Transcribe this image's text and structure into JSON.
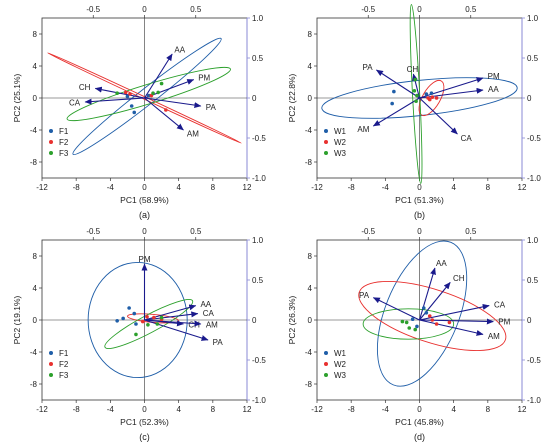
{
  "colors": {
    "group1": "#1f5ea8",
    "group2": "#e8312f",
    "group3": "#2ca02c",
    "loading_arrow": "#1a1a8c",
    "axis": "#333333",
    "right_axis": "#8a8ad6"
  },
  "chart_data": [
    {
      "type": "scatter",
      "panel_label": "(a)",
      "xlabel": "PC1 (58.9%)",
      "ylabel": "PC2 (25.1%)",
      "xlim": [
        -12,
        12
      ],
      "ylim": [
        -10,
        10
      ],
      "xticks": [
        "-12",
        "-8",
        "-4",
        "0",
        "4",
        "8",
        "12"
      ],
      "yticks": [
        "-8",
        "-4",
        "0",
        "4",
        "8"
      ],
      "top_ticks": [
        "-0.5",
        "0",
        "0.5"
      ],
      "right_ticks": [
        "1.0",
        "0.5",
        "0",
        "-0.5",
        "-1.0"
      ],
      "legend": [
        "F1",
        "F2",
        "F3"
      ],
      "loadings": [
        {
          "label": "AA",
          "x": 0.27,
          "y": 0.55
        },
        {
          "label": "PM",
          "x": 0.48,
          "y": 0.23
        },
        {
          "label": "PA",
          "x": 0.55,
          "y": -0.1
        },
        {
          "label": "AM",
          "x": 0.38,
          "y": -0.4
        },
        {
          "label": "CH",
          "x": -0.48,
          "y": 0.12
        },
        {
          "label": "CA",
          "x": -0.58,
          "y": -0.05
        }
      ],
      "series": [
        {
          "name": "F1",
          "points": [
            [
              -1.5,
              -1.0
            ],
            [
              -1.2,
              -1.8
            ],
            [
              -2.0,
              0.2
            ],
            [
              0.5,
              0.3
            ]
          ],
          "ellipse": {
            "cx": 0.3,
            "cy": 0.2,
            "rx": 11.0,
            "ry": 1.0,
            "angle": 38
          }
        },
        {
          "name": "F2",
          "points": [
            [
              -2.2,
              0.7
            ],
            [
              -1.7,
              0.5
            ],
            [
              2.5,
              -1.5
            ],
            [
              0.8,
              0.3
            ]
          ],
          "ellipse": {
            "cx": 0.0,
            "cy": 0.0,
            "rx": 12.5,
            "ry": 0.15,
            "angle": -25
          }
        },
        {
          "name": "F3",
          "points": [
            [
              1.0,
              0.6
            ],
            [
              1.6,
              0.7
            ],
            [
              2.0,
              1.8
            ],
            [
              -3.2,
              0.6
            ]
          ],
          "ellipse": {
            "cx": 0.5,
            "cy": 0.5,
            "rx": 10.0,
            "ry": 1.2,
            "angle": 17
          }
        }
      ]
    },
    {
      "type": "scatter",
      "panel_label": "(b)",
      "xlabel": "PC1 (51.3%)",
      "ylabel": "PC2 (22.8%)",
      "xlim": [
        -12,
        12
      ],
      "ylim": [
        -10,
        10
      ],
      "xticks": [
        "-12",
        "-8",
        "-4",
        "0",
        "4",
        "8",
        "12"
      ],
      "yticks": [
        "-8",
        "-4",
        "0",
        "4",
        "8"
      ],
      "top_ticks": [
        "-0.5",
        "0",
        "0.5"
      ],
      "right_ticks": [
        "1.0",
        "0.5",
        "0",
        "-0.5",
        "-1.0"
      ],
      "legend": [
        "W1",
        "W2",
        "W3"
      ],
      "loadings": [
        {
          "label": "PA",
          "x": -0.42,
          "y": 0.35
        },
        {
          "label": "CH",
          "x": -0.06,
          "y": 0.3
        },
        {
          "label": "PM",
          "x": 0.62,
          "y": 0.25
        },
        {
          "label": "AA",
          "x": 0.62,
          "y": 0.1
        },
        {
          "label": "AM",
          "x": -0.45,
          "y": -0.35
        },
        {
          "label": "CA",
          "x": 0.37,
          "y": -0.45
        }
      ],
      "series": [
        {
          "name": "W1",
          "points": [
            [
              -3.0,
              0.8
            ],
            [
              -3.2,
              -0.7
            ],
            [
              0.8,
              0.5
            ],
            [
              1.4,
              0.6
            ]
          ],
          "ellipse": {
            "cx": 0.0,
            "cy": 0.0,
            "rx": 11.5,
            "ry": 2.2,
            "angle": 6
          }
        },
        {
          "name": "W2",
          "points": [
            [
              1.0,
              0.0
            ],
            [
              1.5,
              0.1
            ],
            [
              2.0,
              0.0
            ],
            [
              1.2,
              -0.2
            ]
          ],
          "ellipse": {
            "cx": 1.4,
            "cy": 0.0,
            "rx": 2.3,
            "ry": 1.1,
            "angle": 60
          }
        },
        {
          "name": "W3",
          "points": [
            [
              -0.5,
              2.3
            ],
            [
              -0.6,
              0.9
            ],
            [
              -0.3,
              0.3
            ],
            [
              -0.4,
              -0.4
            ]
          ],
          "ellipse": {
            "cx": -0.4,
            "cy": 0.5,
            "rx": 10.5,
            "ry": 0.45,
            "angle": -87
          }
        }
      ]
    },
    {
      "type": "scatter",
      "panel_label": "(c)",
      "xlabel": "PC1 (52.3%)",
      "ylabel": "PC2 (19.1%)",
      "xlim": [
        -12,
        12
      ],
      "ylim": [
        -10,
        10
      ],
      "xticks": [
        "-12",
        "-8",
        "-4",
        "0",
        "4",
        "8",
        "12"
      ],
      "yticks": [
        "-8",
        "-4",
        "0",
        "4",
        "8"
      ],
      "top_ticks": [
        "-0.5",
        "0",
        "0.5"
      ],
      "right_ticks": [
        "1.0",
        "0.5",
        "0",
        "-0.5",
        "-1.0"
      ],
      "legend": [
        "F1",
        "F2",
        "F3"
      ],
      "loadings": [
        {
          "label": "PM",
          "x": 0.0,
          "y": 0.7
        },
        {
          "label": "AA",
          "x": 0.5,
          "y": 0.18
        },
        {
          "label": "CA",
          "x": 0.52,
          "y": 0.08
        },
        {
          "label": "CH",
          "x": 0.38,
          "y": -0.05
        },
        {
          "label": "AM",
          "x": 0.55,
          "y": -0.05
        },
        {
          "label": "PA",
          "x": 0.62,
          "y": -0.25
        }
      ],
      "series": [
        {
          "name": "F1",
          "points": [
            [
              -1.8,
              1.5
            ],
            [
              -1.2,
              0.8
            ],
            [
              -2.5,
              0.2
            ],
            [
              -3.2,
              -0.1
            ],
            [
              -1.0,
              -0.5
            ]
          ],
          "ellipse": {
            "cx": -0.8,
            "cy": 0.0,
            "rx": 5.8,
            "ry": 7.2,
            "angle": 0
          }
        },
        {
          "name": "F2",
          "points": [
            [
              0.3,
              0.4
            ],
            [
              1.1,
              0.3
            ],
            [
              2.0,
              0.1
            ],
            [
              -0.2,
              -0.2
            ]
          ],
          "ellipse": {
            "cx": 1.0,
            "cy": 0.2,
            "rx": 3.0,
            "ry": 0.5,
            "angle": -5
          }
        },
        {
          "name": "F3",
          "points": [
            [
              1.5,
              -0.5
            ],
            [
              0.4,
              -0.6
            ],
            [
              -1.0,
              -1.8
            ],
            [
              2.0,
              0.3
            ]
          ],
          "ellipse": {
            "cx": 0.5,
            "cy": -0.5,
            "rx": 5.8,
            "ry": 1.1,
            "angle": 28
          }
        }
      ]
    },
    {
      "type": "scatter",
      "panel_label": "(d)",
      "xlabel": "PC1 (45.8%)",
      "ylabel": "PC2 (26.3%)",
      "xlim": [
        -12,
        12
      ],
      "ylim": [
        -10,
        10
      ],
      "xticks": [
        "-12",
        "-8",
        "-4",
        "0",
        "4",
        "8",
        "12"
      ],
      "yticks": [
        "-8",
        "-4",
        "0",
        "4",
        "8"
      ],
      "top_ticks": [
        "-0.5",
        "0",
        "0.5"
      ],
      "right_ticks": [
        "1.0",
        "0.5",
        "0",
        "-0.5",
        "-1.0"
      ],
      "legend": [
        "W1",
        "W2",
        "W3"
      ],
      "loadings": [
        {
          "label": "AA",
          "x": 0.15,
          "y": 0.65
        },
        {
          "label": "CH",
          "x": 0.3,
          "y": 0.47
        },
        {
          "label": "PA",
          "x": -0.45,
          "y": 0.28
        },
        {
          "label": "CA",
          "x": 0.68,
          "y": 0.18
        },
        {
          "label": "PM",
          "x": 0.72,
          "y": -0.02
        },
        {
          "label": "AM",
          "x": 0.62,
          "y": -0.18
        }
      ],
      "series": [
        {
          "name": "W1",
          "points": [
            [
              0.5,
              1.5
            ],
            [
              -0.3,
              -0.8
            ],
            [
              0.8,
              0.9
            ],
            [
              -0.8,
              0.1
            ]
          ],
          "ellipse": {
            "cx": 0.3,
            "cy": 0.8,
            "rx": 9.0,
            "ry": 4.6,
            "angle": 68
          }
        },
        {
          "name": "W2",
          "points": [
            [
              1.2,
              0.5
            ],
            [
              2.0,
              -0.5
            ],
            [
              3.5,
              -0.3
            ],
            [
              1.5,
              0.0
            ]
          ],
          "ellipse": {
            "cx": 1.5,
            "cy": 0.5,
            "rx": 9.0,
            "ry": 3.3,
            "angle": -18
          }
        },
        {
          "name": "W3",
          "points": [
            [
              -2.0,
              -0.2
            ],
            [
              -1.5,
              -0.3
            ],
            [
              -1.2,
              -1.0
            ],
            [
              -0.5,
              -1.2
            ]
          ],
          "ellipse": {
            "cx": -1.3,
            "cy": -0.5,
            "rx": 5.3,
            "ry": 1.9,
            "angle": 0
          }
        }
      ]
    }
  ]
}
